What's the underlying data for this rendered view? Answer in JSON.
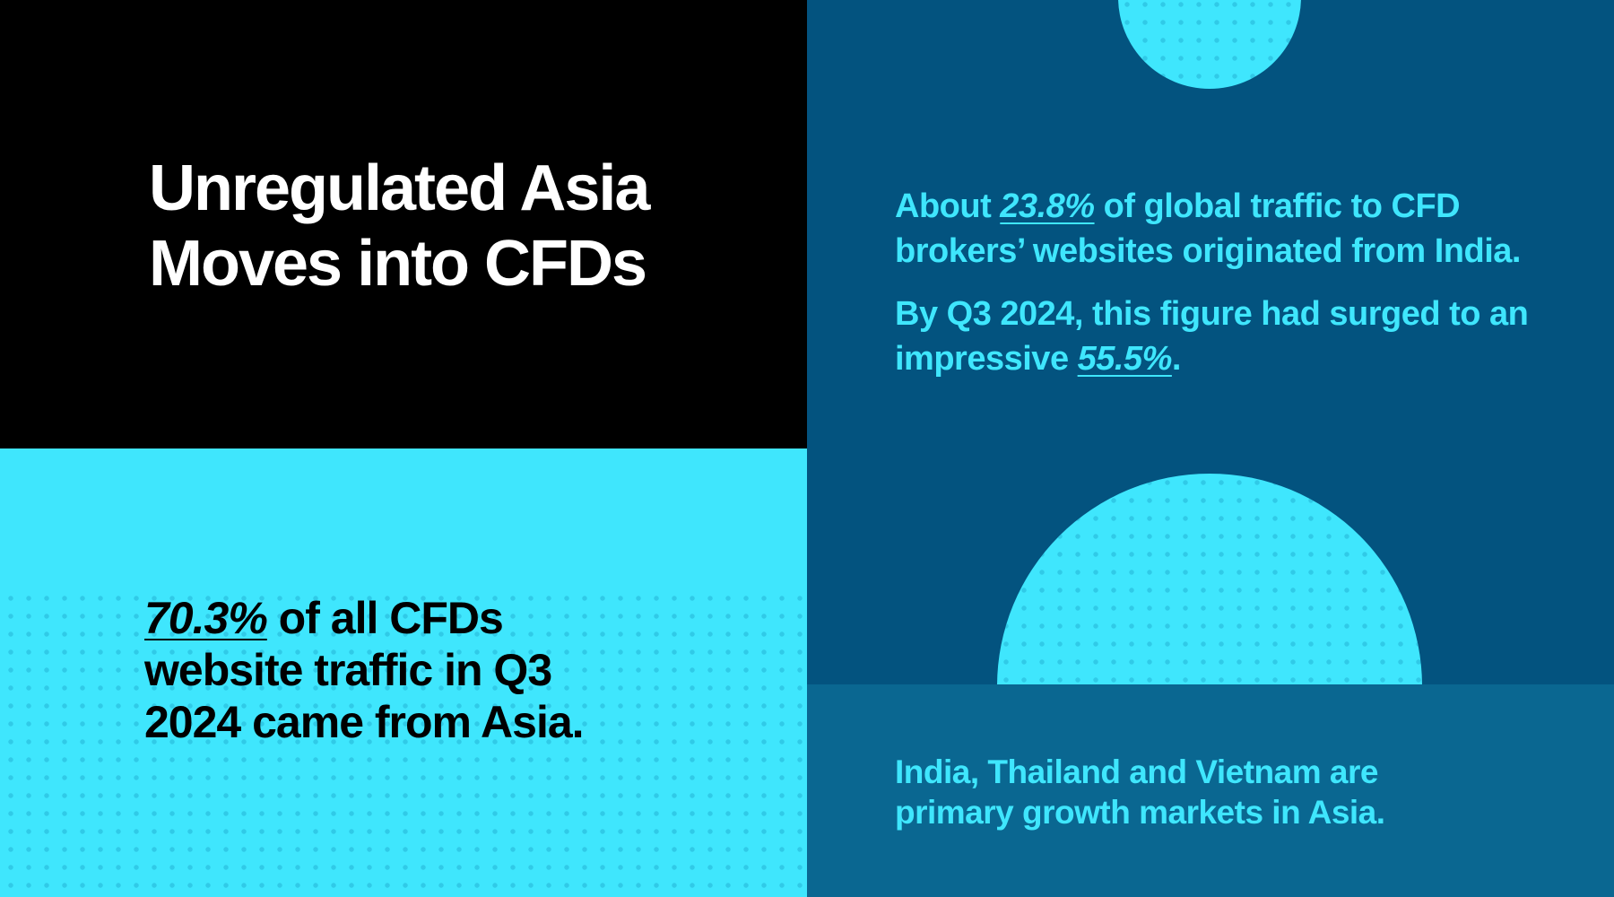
{
  "title": {
    "line1": "Unregulated Asia",
    "line2": "Moves into CFDs"
  },
  "asia_stat": {
    "value": "70.3%",
    "text": " of all CFDs website traffic in Q3 2024 came from Asia."
  },
  "india_stat": {
    "p1_before": "About ",
    "p1_value": "23.8%",
    "p1_after": " of global traffic to CFD brokers’ websites originated from India.",
    "p2_before": "By Q3 2024, this figure had surged to an impressive ",
    "p2_value": "55.5%",
    "p2_after": "."
  },
  "markets": {
    "text": "India, Thailand and Vietnam are primary growth markets in Asia."
  },
  "colors": {
    "black": "#000000",
    "cyan": "#3fe6fd",
    "navy": "#03537f",
    "blue": "#0a6791"
  }
}
